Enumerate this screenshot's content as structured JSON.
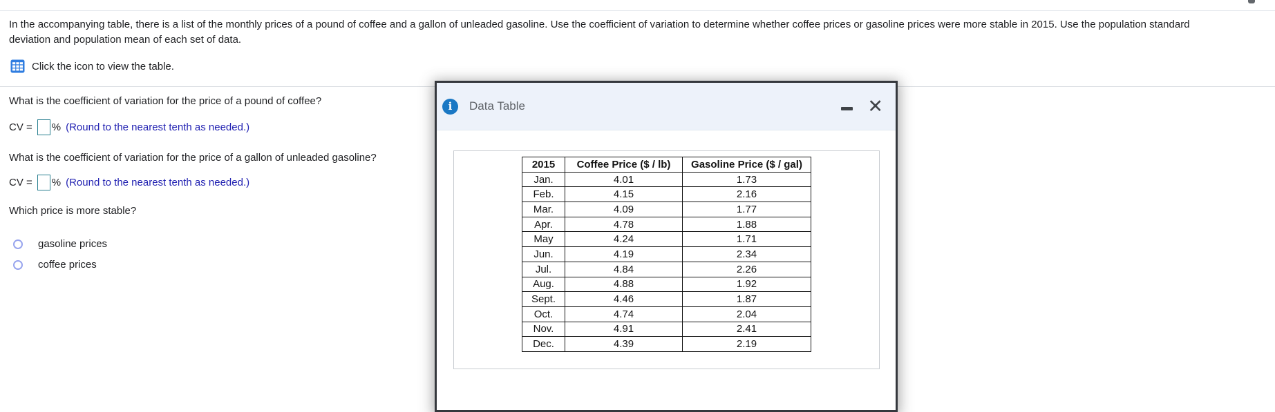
{
  "page": {
    "intro": {
      "line1": "In the accompanying table, there is a list of the monthly prices of a pound of coffee and a gallon of unleaded gasoline. Use the coefficient of variation to determine whether coffee prices or gasoline prices were more stable in 2015. Use the population standard",
      "line2": "deviation and population mean of each set of data."
    },
    "view_table_hint": "Click the icon to view the table.",
    "questions": {
      "coffee": "What is the coefficient of variation for the price of a pound of coffee?",
      "gasoline": "What is the coefficient of variation for the price of a gallon of unleaded gasoline?",
      "stable": "Which price is more stable?"
    },
    "cv": {
      "label": "CV =",
      "percent": "%",
      "round_hint": "(Round to the nearest tenth as needed.)",
      "coffee_value": "",
      "gasoline_value": ""
    },
    "radios": [
      {
        "label": "gasoline prices",
        "selected": false
      },
      {
        "label": "coffee prices",
        "selected": false
      }
    ]
  },
  "dialog": {
    "title": "Data Table",
    "info_icon_glyph": "i",
    "close_icon_glyph": "✕",
    "table": {
      "headers": [
        "2015",
        "Coffee Price ($ / lb)",
        "Gasoline Price ($ / gal)"
      ],
      "rows": [
        [
          "Jan.",
          "4.01",
          "1.73"
        ],
        [
          "Feb.",
          "4.15",
          "2.16"
        ],
        [
          "Mar.",
          "4.09",
          "1.77"
        ],
        [
          "Apr.",
          "4.78",
          "1.88"
        ],
        [
          "May",
          "4.24",
          "1.71"
        ],
        [
          "Jun.",
          "4.19",
          "2.34"
        ],
        [
          "Jul.",
          "4.84",
          "2.26"
        ],
        [
          "Aug.",
          "4.88",
          "1.92"
        ],
        [
          "Sept.",
          "4.46",
          "1.87"
        ],
        [
          "Oct.",
          "4.74",
          "2.04"
        ],
        [
          "Nov.",
          "4.91",
          "2.41"
        ],
        [
          "Dec.",
          "4.39",
          "2.19"
        ]
      ]
    }
  },
  "colors": {
    "instruction_blue": "#2222b2",
    "input_border_teal": "#267d8e",
    "table_icon_blue": "#2f7de0",
    "info_icon_blue": "#1a78c4",
    "radio_border": "#98a5ee",
    "dialog_border": "#35383d",
    "dialog_header_bg": "#edf2fa"
  }
}
